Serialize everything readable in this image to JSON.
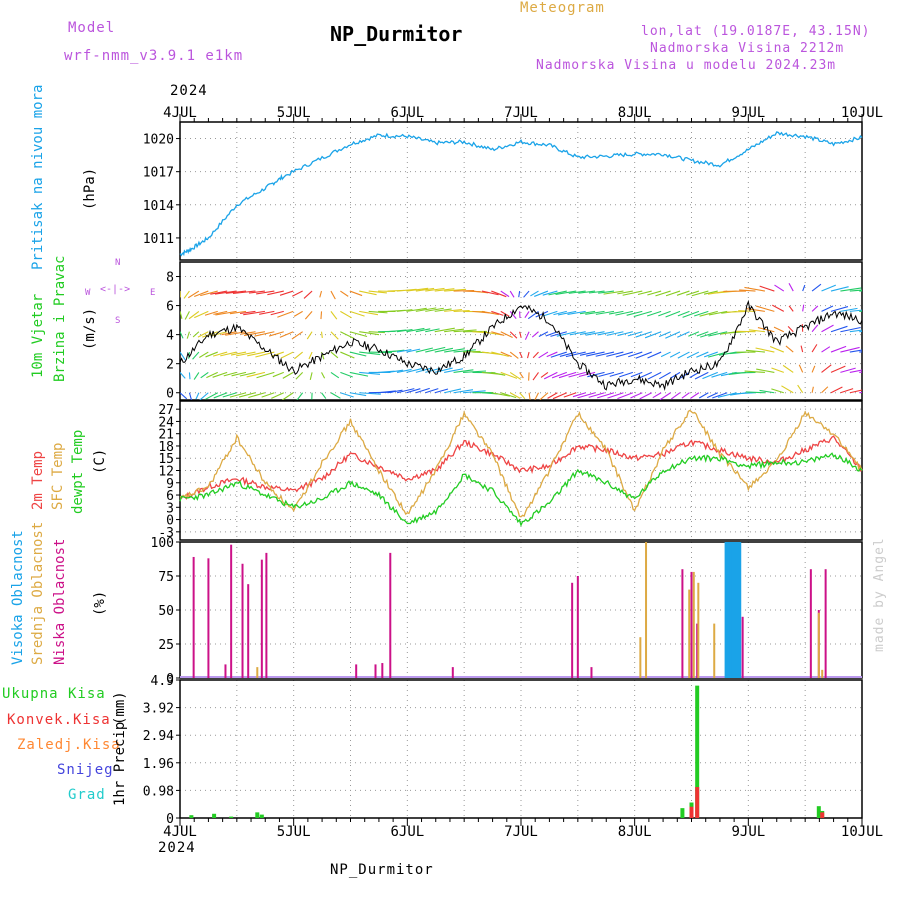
{
  "header": {
    "model_label": "Model",
    "model_name": "wrf-nmm_v3.9.1 e1km",
    "station": "NP_Durmitor",
    "meteogram": "Meteogram",
    "lonlat": "lon,lat (19.0187E, 43.15N)",
    "elevation": "Nadmorska Visina 2212m",
    "model_elevation": "Nadmorska Visina u modelu 2024.23m",
    "footer_station": "NP_Durmitor",
    "credit": "made by Angel"
  },
  "colors": {
    "pressure": "#1aa3e8",
    "temp2m": "#ee4444",
    "sfc_temp": "#ddaa44",
    "dewpt": "#22cc22",
    "high_cloud": "#1aa3e8",
    "mid_cloud": "#ddaa44",
    "low_cloud": "#cc1188",
    "precip_total": "#22cc22",
    "precip_conv": "#ee3333",
    "precip_frozen": "#ff8833",
    "snow": "#4444dd",
    "hail": "#22cccc",
    "purple_text": "#bb55dd",
    "orange_text": "#ddaa44"
  },
  "chart_data": [
    {
      "type": "line",
      "panel": "pressure",
      "ylabel": "Pritisak na nivou mora",
      "unit": "(hPa)",
      "xticks": [
        "4JUL",
        "5JUL",
        "6JUL",
        "7JUL",
        "8JUL",
        "9JUL",
        "10JUL"
      ],
      "year": "2024",
      "yticks": [
        1011,
        1014,
        1017,
        1020
      ],
      "ylim": [
        1009,
        1021.5
      ],
      "series": [
        {
          "x": [
            0,
            0.1,
            0.25,
            0.5,
            0.75,
            0.9,
            1.2,
            1.5,
            1.75,
            2.0,
            2.25,
            2.5,
            2.75,
            3.0,
            3.25,
            3.5,
            3.75,
            4.0,
            4.25,
            4.5,
            4.75,
            5.0,
            5.25,
            5.5,
            5.75,
            6.0
          ],
          "values": [
            1009.5,
            1010.0,
            1011.0,
            1014.0,
            1015.5,
            1016.5,
            1018.0,
            1019.5,
            1020.3,
            1020.2,
            1019.6,
            1019.7,
            1019.0,
            1019.7,
            1019.4,
            1018.3,
            1018.4,
            1018.6,
            1018.6,
            1018.0,
            1017.6,
            1019.0,
            1020.5,
            1020.2,
            1019.5,
            1020.1
          ]
        }
      ]
    },
    {
      "type": "line",
      "panel": "wind",
      "ylabel": "10m Vjetar",
      "ylabel2": "Brzina i Pravac",
      "unit": "(m/s)",
      "compass": [
        "N",
        "W",
        "E",
        "S"
      ],
      "yticks": [
        0,
        2,
        4,
        6,
        8
      ],
      "ylim": [
        -0.5,
        9
      ],
      "series": [
        {
          "name": "speed",
          "x": [
            0,
            0.25,
            0.5,
            0.75,
            1.0,
            1.25,
            1.5,
            1.75,
            2.0,
            2.25,
            2.5,
            2.75,
            3.0,
            3.25,
            3.5,
            3.75,
            4.0,
            4.25,
            4.5,
            4.75,
            5.0,
            5.25,
            5.5,
            5.75,
            6.0
          ],
          "values": [
            2,
            4,
            4.5,
            3,
            1.5,
            2.5,
            3.5,
            3,
            2,
            1.5,
            2.5,
            4.5,
            6,
            5,
            2,
            0.5,
            1,
            0.5,
            1.5,
            2,
            6,
            3.5,
            4.5,
            5.5,
            5
          ]
        }
      ]
    },
    {
      "type": "line",
      "panel": "temperature",
      "series_labels": [
        "2m Temp",
        "SFC Temp",
        "dewpt Temp"
      ],
      "unit": "(C)",
      "yticks": [
        -3,
        0,
        3,
        6,
        9,
        12,
        15,
        18,
        21,
        24,
        27
      ],
      "ylim": [
        -5,
        29
      ],
      "x": [
        0,
        0.25,
        0.5,
        0.75,
        1.0,
        1.25,
        1.5,
        1.75,
        2.0,
        2.25,
        2.5,
        2.75,
        3.0,
        3.25,
        3.5,
        3.75,
        4.0,
        4.25,
        4.5,
        4.75,
        5.0,
        5.25,
        5.5,
        5.75,
        6.0
      ],
      "series": [
        {
          "name": "2m Temp",
          "values": [
            5,
            8,
            10,
            8,
            7,
            10,
            16,
            13,
            10,
            12,
            19,
            16,
            12,
            13,
            18,
            17,
            15,
            16,
            19,
            17,
            15,
            14,
            17,
            20,
            12
          ]
        },
        {
          "name": "SFC Temp",
          "values": [
            5,
            8,
            20,
            9,
            2,
            14,
            24,
            12,
            1,
            12,
            26,
            16,
            0,
            12,
            26,
            17,
            2,
            17,
            27,
            16,
            8,
            14,
            26,
            21,
            12
          ]
        },
        {
          "name": "dewpt Temp",
          "values": [
            5,
            6,
            9,
            6,
            3,
            5,
            9,
            6,
            -1,
            2,
            11,
            7,
            -1,
            4,
            12,
            9,
            5,
            12,
            15,
            15,
            13,
            14,
            14,
            16,
            12
          ]
        }
      ]
    },
    {
      "type": "bar",
      "panel": "cloud",
      "series_labels": [
        "Visoka Oblacnost",
        "Srednja Oblacnost",
        "Niska Oblacnost"
      ],
      "unit": "(%)",
      "yticks": [
        0,
        25,
        50,
        75,
        100
      ],
      "ylim": [
        0,
        100
      ],
      "series": [
        {
          "name": "Niska",
          "x": [
            0.12,
            0.25,
            0.4,
            0.45,
            0.55,
            0.6,
            0.72,
            0.76,
            1.55,
            1.72,
            1.78,
            1.85,
            2.4,
            3.45,
            3.5,
            3.62,
            4.42,
            4.5,
            4.55,
            4.95,
            5.55,
            5.62,
            5.68
          ],
          "values": [
            89,
            88,
            10,
            98,
            84,
            69,
            87,
            92,
            10,
            10,
            11,
            92,
            8,
            70,
            75,
            8,
            80,
            78,
            40,
            45,
            80,
            50,
            80
          ]
        },
        {
          "name": "Srednja",
          "x": [
            0.68,
            4.05,
            4.1,
            4.48,
            4.52,
            4.56,
            4.7,
            5.62,
            5.65
          ],
          "values": [
            8,
            30,
            100,
            65,
            78,
            70,
            40,
            48,
            6
          ]
        },
        {
          "name": "Visoka",
          "x": [
            4.8,
            4.82,
            4.84,
            4.86,
            4.88,
            4.9,
            4.92
          ],
          "values": [
            100,
            100,
            100,
            100,
            100,
            100,
            100
          ]
        }
      ]
    },
    {
      "type": "bar",
      "panel": "precipitation",
      "series_labels": [
        "Ukupna Kisa",
        "Konvek.Kisa",
        "Zaledj.Kisa",
        "Snijeg",
        "Grad"
      ],
      "ylabel": "1hr Precip",
      "unit": "(mm)",
      "yticks": [
        0,
        0.98,
        1.96,
        2.94,
        3.92,
        4.9
      ],
      "ylim": [
        0,
        4.9
      ],
      "series": [
        {
          "name": "Ukupna Kisa",
          "x": [
            0.1,
            0.3,
            0.45,
            0.68,
            0.72,
            4.42,
            4.5,
            4.55,
            5.62,
            5.65
          ],
          "values": [
            0.1,
            0.15,
            0.05,
            0.2,
            0.12,
            0.35,
            0.55,
            4.7,
            0.42,
            0.25
          ]
        },
        {
          "name": "Konvek.Kisa",
          "x": [
            4.5,
            4.55,
            5.65
          ],
          "values": [
            0.4,
            1.1,
            0.2
          ]
        }
      ]
    }
  ]
}
